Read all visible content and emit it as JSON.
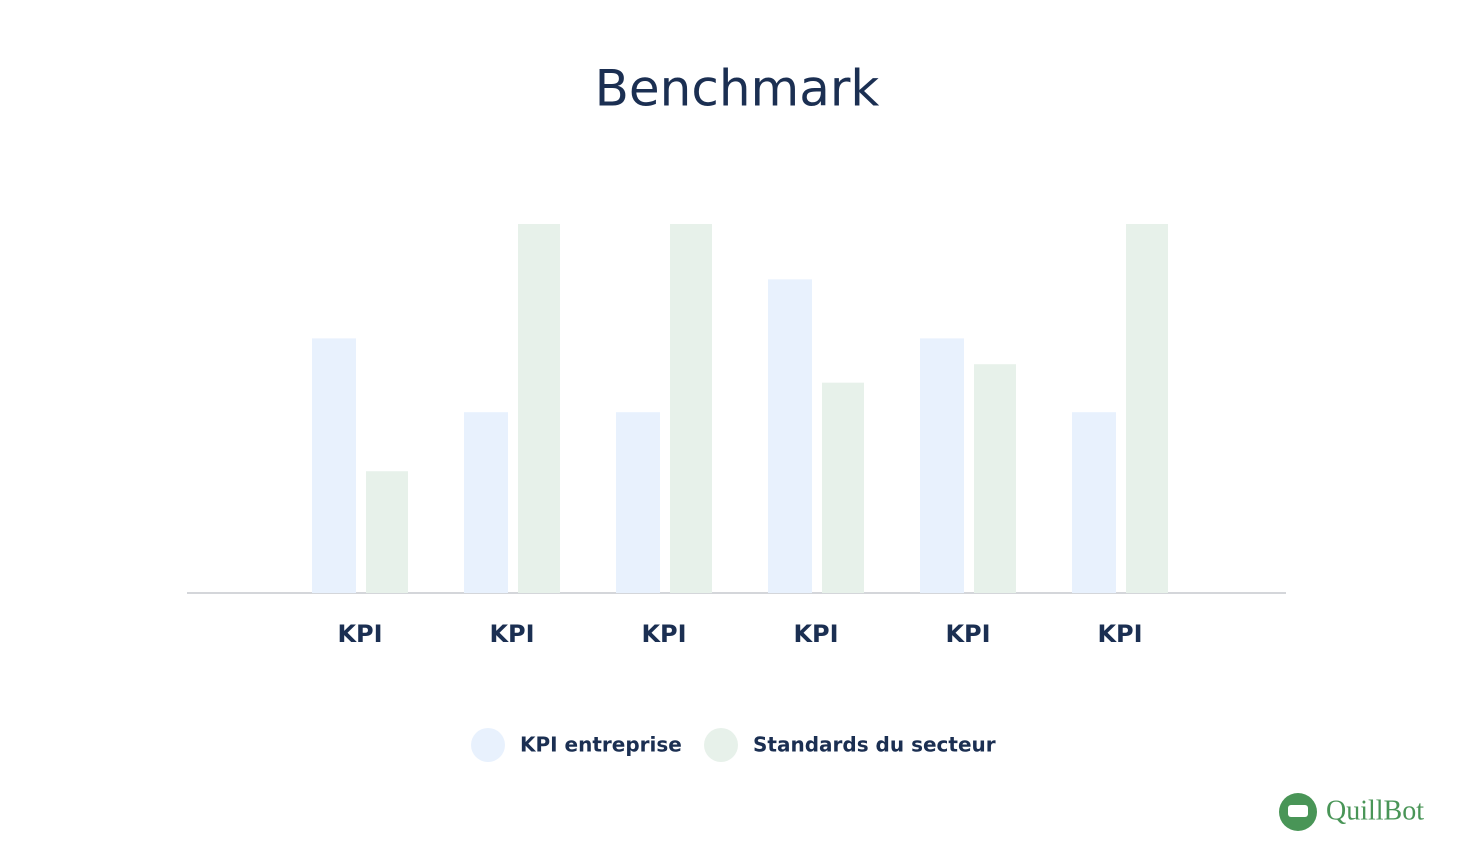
{
  "chart_data": {
    "type": "bar",
    "title": "Benchmark",
    "categories": [
      "KPI",
      "KPI",
      "KPI",
      "KPI",
      "KPI",
      "KPI"
    ],
    "series": [
      {
        "name": "KPI entreprise",
        "color": "#e8f1fd",
        "values": [
          69,
          49,
          49,
          85,
          69,
          49
        ]
      },
      {
        "name": "Standards du secteur",
        "color": "#e7f1ea",
        "values": [
          33,
          100,
          100,
          57,
          62,
          100
        ]
      }
    ],
    "ylim": [
      0,
      100
    ],
    "legend": "bottom"
  },
  "logo": {
    "text": "QuillBot"
  }
}
